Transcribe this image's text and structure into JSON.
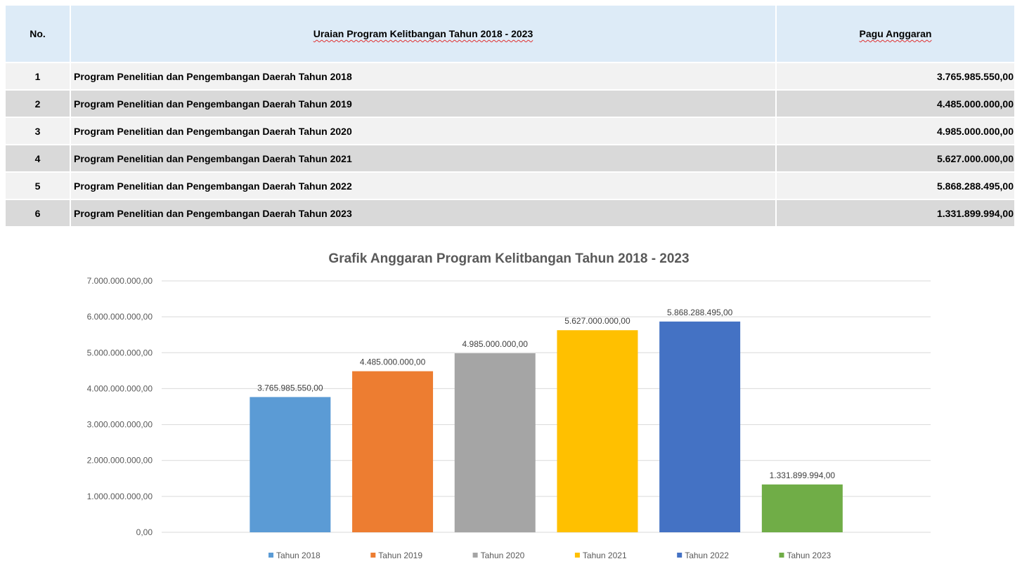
{
  "table": {
    "headers": {
      "no": "No.",
      "description": "Uraian Program Kelitbangan Tahun 2018 - 2023",
      "budget": "Pagu Anggaran"
    },
    "rows": [
      {
        "no": "1",
        "description": "Program Penelitian dan Pengembangan Daerah Tahun 2018",
        "budget": "3.765.985.550,00"
      },
      {
        "no": "2",
        "description": "Program Penelitian dan Pengembangan Daerah Tahun 2019",
        "budget": "4.485.000.000,00"
      },
      {
        "no": "3",
        "description": "Program Penelitian dan Pengembangan Daerah Tahun 2020",
        "budget": "4.985.000.000,00"
      },
      {
        "no": "4",
        "description": "Program Penelitian dan Pengembangan Daerah Tahun 2021",
        "budget": "5.627.000.000,00"
      },
      {
        "no": "5",
        "description": "Program Penelitian dan Pengembangan Daerah Tahun 2022",
        "budget": "5.868.288.495,00"
      },
      {
        "no": "6",
        "description": "Program Penelitian dan Pengembangan Daerah Tahun 2023",
        "budget": "1.331.899.994,00"
      }
    ]
  },
  "chart_data": {
    "type": "bar",
    "title": "Grafik Anggaran Program Kelitbangan Tahun 2018 - 2023",
    "xlabel": "",
    "ylabel": "",
    "ylim": [
      0,
      7000000000
    ],
    "y_ticks": [
      0,
      1000000000,
      2000000000,
      3000000000,
      4000000000,
      5000000000,
      6000000000,
      7000000000
    ],
    "y_tick_labels": [
      "0,00",
      "1.000.000.000,00",
      "2.000.000.000,00",
      "3.000.000.000,00",
      "4.000.000.000,00",
      "5.000.000.000,00",
      "6.000.000.000,00",
      "7.000.000.000,00"
    ],
    "grid": true,
    "legend_position": "bottom",
    "series": [
      {
        "name": "Tahun 2018",
        "value": 3765985550,
        "label": "3.765.985.550,00",
        "color": "#5b9bd5"
      },
      {
        "name": "Tahun 2019",
        "value": 4485000000,
        "label": "4.485.000.000,00",
        "color": "#ed7d31"
      },
      {
        "name": "Tahun 2020",
        "value": 4985000000,
        "label": "4.985.000.000,00",
        "color": "#a5a5a5"
      },
      {
        "name": "Tahun 2021",
        "value": 5627000000,
        "label": "5.627.000.000,00",
        "color": "#ffc000"
      },
      {
        "name": "Tahun 2022",
        "value": 5868288495,
        "label": "5.868.288.495,00",
        "color": "#4472c4"
      },
      {
        "name": "Tahun 2023",
        "value": 1331899994,
        "label": "1.331.899.994,00",
        "color": "#70ad47"
      }
    ]
  }
}
